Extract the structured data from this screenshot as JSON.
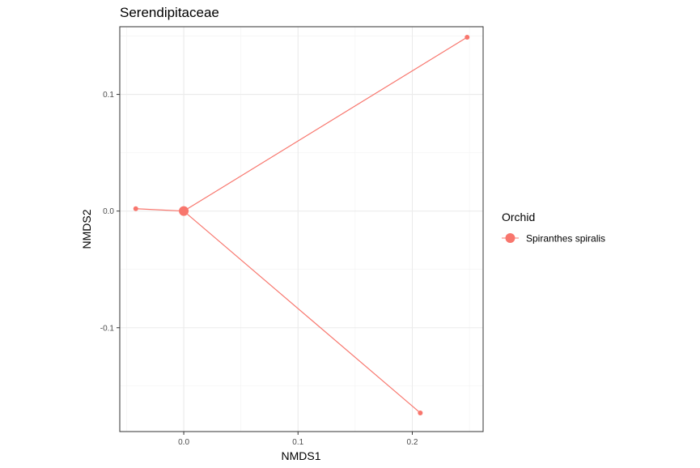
{
  "chart_data": {
    "type": "scatter",
    "title": "Serendipitaceae",
    "xlabel": "NMDS1",
    "ylabel": "NMDS2",
    "xlim": [
      -0.056,
      0.262
    ],
    "ylim": [
      -0.189,
      0.158
    ],
    "x_ticks": [
      0.0,
      0.1,
      0.2
    ],
    "x_tick_labels": [
      "0.0",
      "0.1",
      "0.2"
    ],
    "y_ticks": [
      -0.1,
      0.0,
      0.1
    ],
    "y_tick_labels": [
      "-0.1",
      "0.0",
      "0.1"
    ],
    "grid": true,
    "legend": {
      "title": "Orchid",
      "position": "right",
      "entries": [
        {
          "label": "Spiranthes spiralis",
          "color": "#F8766D"
        }
      ]
    },
    "series": [
      {
        "name": "Spiranthes spiralis",
        "color": "#F8766D",
        "centroid": {
          "x": 0.0,
          "y": 0.0
        },
        "points": [
          {
            "x": 0.248,
            "y": 0.149
          },
          {
            "x": 0.207,
            "y": -0.173
          },
          {
            "x": -0.042,
            "y": 0.002
          }
        ]
      }
    ]
  }
}
